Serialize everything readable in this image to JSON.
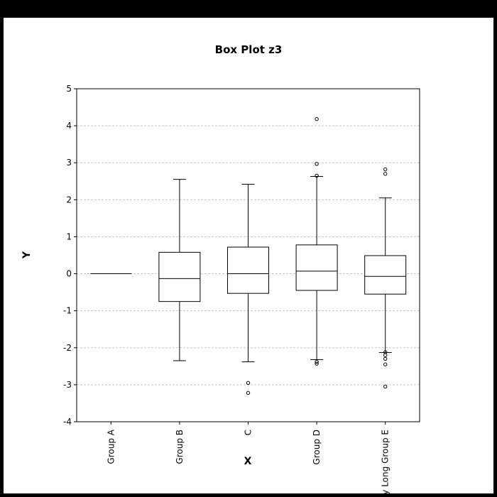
{
  "chart_data": {
    "type": "box",
    "title": "Box Plot z3",
    "xlabel": "X",
    "ylabel": "Y",
    "ylim": [
      -4,
      5
    ],
    "yticks": [
      5,
      4,
      3,
      2,
      1,
      0,
      -1,
      -2,
      -3,
      -4
    ],
    "ygrid": true,
    "categories": [
      "Group A",
      "Group B",
      "C",
      "Group D",
      "Very Long Group E"
    ],
    "series": [
      {
        "category": "Group A",
        "whisker_low": 0,
        "q1": 0,
        "median": 0,
        "q3": 0,
        "whisker_high": 0,
        "outliers": []
      },
      {
        "category": "Group B",
        "whisker_low": -2.35,
        "q1": -0.75,
        "median": -0.13,
        "q3": 0.58,
        "whisker_high": 2.55,
        "outliers": []
      },
      {
        "category": "C",
        "whisker_low": -2.38,
        "q1": -0.53,
        "median": 0.0,
        "q3": 0.72,
        "whisker_high": 2.42,
        "outliers": [
          -2.95,
          -3.22
        ]
      },
      {
        "category": "Group D",
        "whisker_low": -2.32,
        "q1": -0.45,
        "median": 0.07,
        "q3": 0.78,
        "whisker_high": 2.63,
        "outliers": [
          4.18,
          2.97,
          2.65,
          -2.38,
          -2.43
        ]
      },
      {
        "category": "Very Long Group E",
        "whisker_low": -2.13,
        "q1": -0.55,
        "median": -0.07,
        "q3": 0.49,
        "whisker_high": 2.05,
        "outliers": [
          2.82,
          2.7,
          -2.12,
          -2.2,
          -2.3,
          -2.45,
          -3.05
        ]
      }
    ]
  }
}
